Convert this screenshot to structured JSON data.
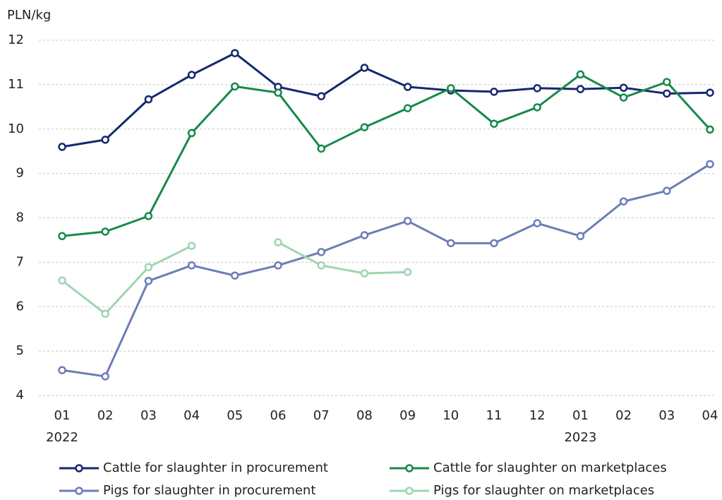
{
  "chart_data": {
    "type": "line",
    "y_axis_label": "PLN/kg",
    "categories": [
      "01",
      "02",
      "03",
      "04",
      "05",
      "06",
      "07",
      "08",
      "09",
      "10",
      "11",
      "12",
      "01",
      "02",
      "03",
      "04"
    ],
    "groups": [
      {
        "label": "2022",
        "first": 0
      },
      {
        "label": "2023",
        "first": 12
      }
    ],
    "ylim": [
      4,
      12
    ],
    "yticks": [
      4,
      5,
      6,
      7,
      8,
      9,
      10,
      11,
      12
    ],
    "grid": true,
    "legend": "bottom",
    "series": [
      {
        "name": "Cattle for slaughter in procurement",
        "color": "#14286e",
        "values": [
          9.6,
          9.76,
          10.67,
          11.22,
          11.71,
          10.95,
          10.74,
          11.38,
          10.95,
          10.87,
          10.84,
          10.92,
          10.9,
          10.93,
          10.8,
          10.82
        ]
      },
      {
        "name": "Cattle for slaughter on marketplaces",
        "color": "#18894a",
        "values": [
          7.59,
          7.69,
          8.04,
          9.91,
          10.96,
          10.82,
          9.56,
          10.04,
          10.47,
          10.92,
          10.12,
          10.49,
          11.23,
          10.71,
          11.06,
          9.99
        ]
      },
      {
        "name": "Pigs for slaughter in procurement",
        "color": "#6d7db6",
        "values": [
          4.57,
          4.43,
          6.58,
          6.93,
          6.7,
          6.93,
          7.23,
          7.61,
          7.93,
          7.43,
          7.43,
          7.88,
          7.59,
          8.37,
          8.61,
          9.21
        ]
      },
      {
        "name": "Pigs for slaughter on marketplaces",
        "color": "#9fd5b1",
        "values": [
          6.59,
          5.84,
          6.89,
          7.37,
          null,
          7.45,
          6.93,
          6.75,
          6.78,
          null,
          null,
          null,
          null,
          null,
          null,
          null
        ]
      }
    ]
  }
}
